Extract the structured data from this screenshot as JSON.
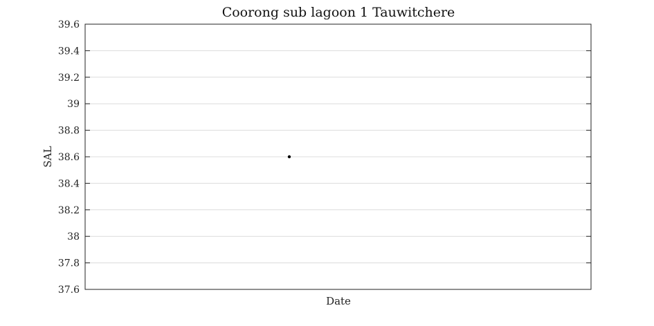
{
  "chart_data": {
    "type": "scatter",
    "title": "Coorong sub lagoon 1 Tauwitchere",
    "xlabel": "Date",
    "ylabel": "SAL",
    "ylim": [
      37.6,
      39.6
    ],
    "yticks": [
      "37.6",
      "37.8",
      "38",
      "38.2",
      "38.4",
      "38.6",
      "38.8",
      "39",
      "39.2",
      "39.4",
      "39.6"
    ],
    "xticks": [],
    "grid": true,
    "point_color": "#000000",
    "series": [
      {
        "points": [
          {
            "y": 38.6
          }
        ]
      }
    ]
  }
}
